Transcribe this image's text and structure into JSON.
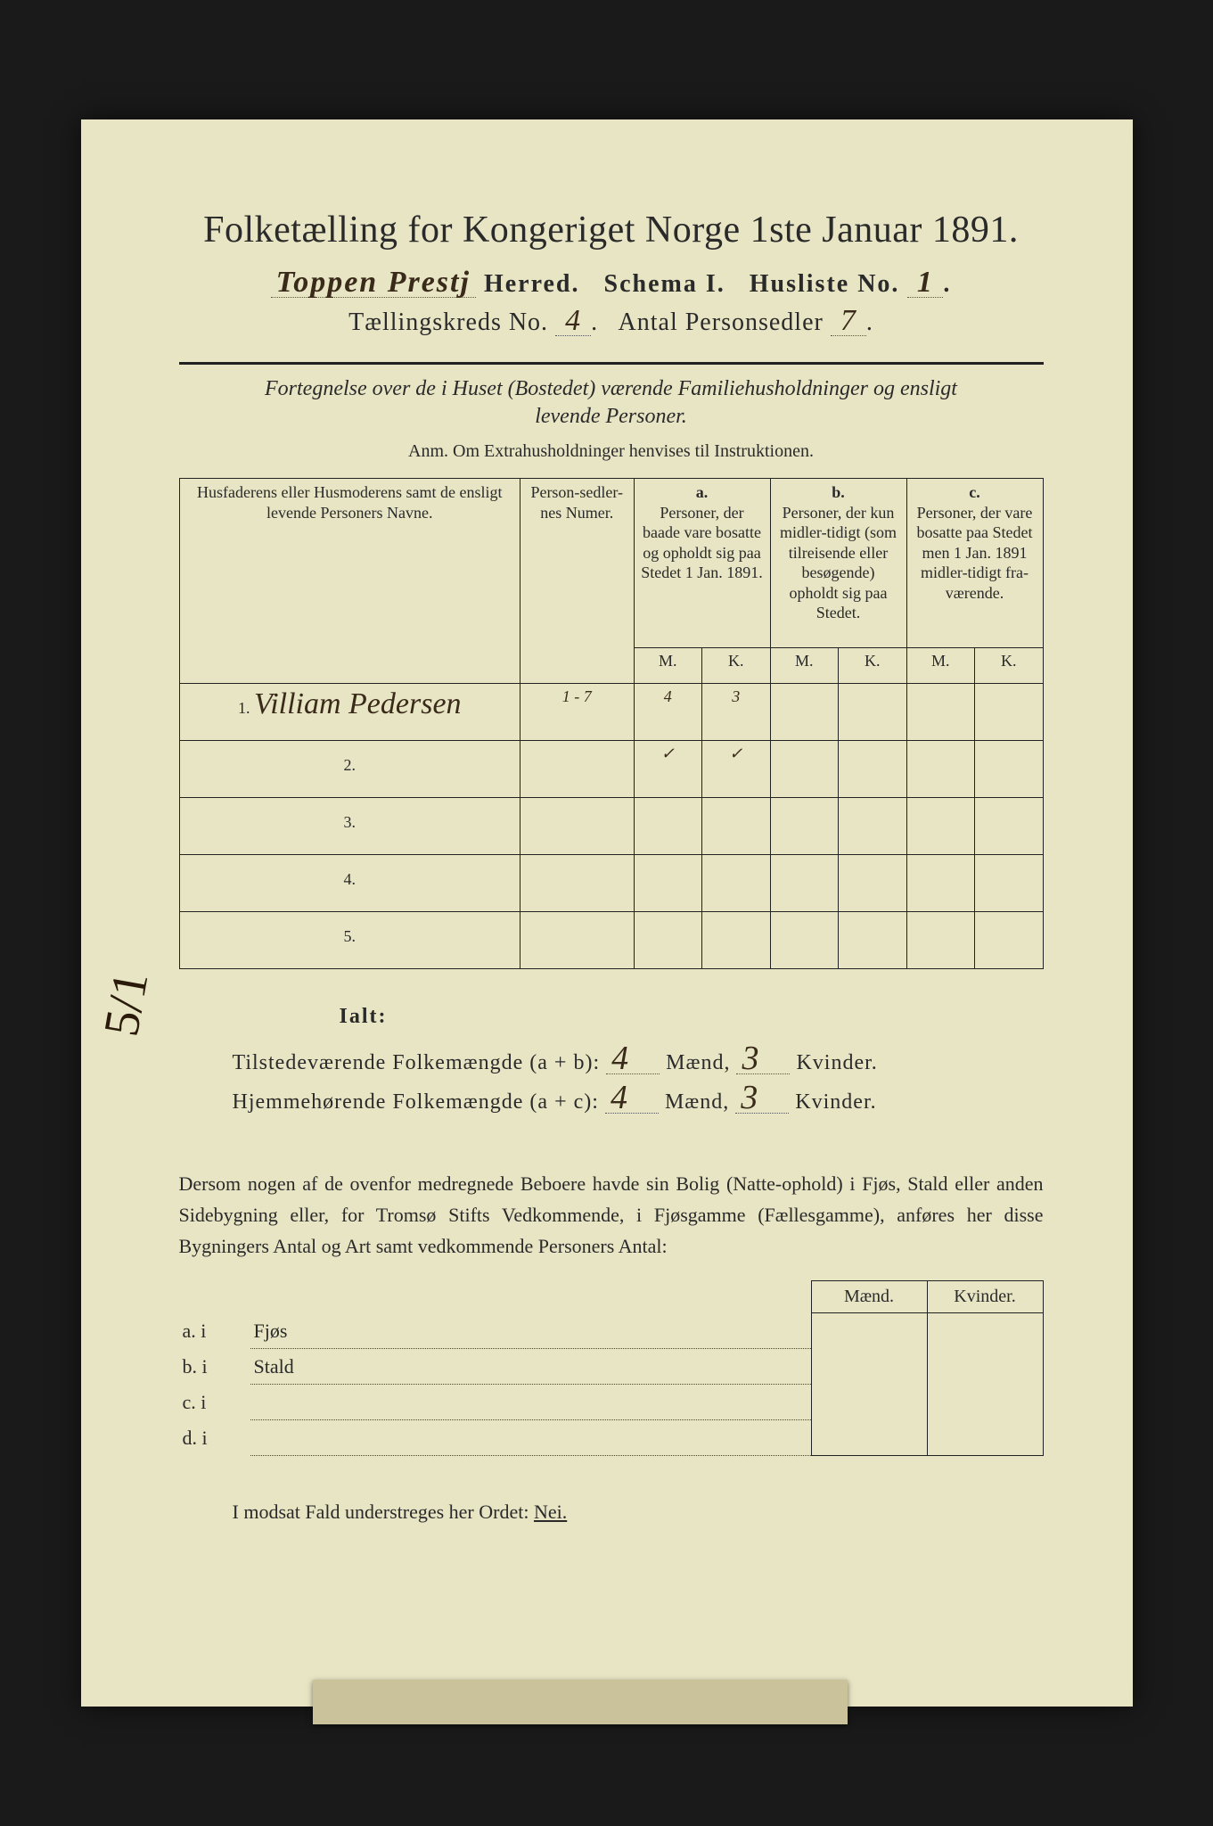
{
  "title": "Folketælling for Kongeriget Norge 1ste Januar 1891.",
  "header": {
    "herred_hw": "Toppen Prestj",
    "herred_label": "Herred.",
    "schema_label": "Schema I.",
    "husliste_label": "Husliste No.",
    "husliste_hw": "1",
    "kreds_label": "Tællingskreds No.",
    "kreds_hw": "4",
    "antal_label": "Antal Personsedler",
    "antal_hw": "7"
  },
  "subtitle1": "Fortegnelse over de i Huset (Bostedet) værende Familiehusholdninger og ensligt",
  "subtitle2": "levende Personer.",
  "anm": "Anm.  Om Extrahusholdninger henvises til Instruktionen.",
  "table": {
    "col1": "Husfaderens eller Husmoderens samt de ensligt levende Personers Navne.",
    "col2": "Person-sedler-nes Numer.",
    "a_label": "a.",
    "a_text": "Personer, der baade vare bosatte og opholdt sig paa Stedet 1 Jan. 1891.",
    "b_label": "b.",
    "b_text": "Personer, der kun midler-tidigt (som tilreisende eller besøgende) opholdt sig paa Stedet.",
    "c_label": "c.",
    "c_text": "Personer, der vare bosatte paa Stedet men 1 Jan. 1891 midler-tidigt fra-værende.",
    "M": "M.",
    "K": "K.",
    "rows": [
      {
        "n": "1.",
        "name": "Villiam Pedersen",
        "num": "1 - 7",
        "aM": "4",
        "aK": "3",
        "bM": "",
        "bK": "",
        "cM": "",
        "cK": ""
      },
      {
        "n": "2.",
        "name": "",
        "num": "",
        "aM": "✓",
        "aK": "✓",
        "bM": "",
        "bK": "",
        "cM": "",
        "cK": ""
      },
      {
        "n": "3.",
        "name": "",
        "num": "",
        "aM": "",
        "aK": "",
        "bM": "",
        "bK": "",
        "cM": "",
        "cK": ""
      },
      {
        "n": "4.",
        "name": "",
        "num": "",
        "aM": "",
        "aK": "",
        "bM": "",
        "bK": "",
        "cM": "",
        "cK": ""
      },
      {
        "n": "5.",
        "name": "",
        "num": "",
        "aM": "",
        "aK": "",
        "bM": "",
        "bK": "",
        "cM": "",
        "cK": ""
      }
    ]
  },
  "totals": {
    "ialt": "Ialt:",
    "line1a": "Tilstedeværende Folkemængde (a + b):",
    "line2a": "Hjemmehørende Folkemængde (a + c):",
    "maend": "Mænd,",
    "kvinder": "Kvinder.",
    "t_m": "4",
    "t_k": "3",
    "h_m": "4",
    "h_k": "3"
  },
  "margin": "5/1",
  "bodytext": "Dersom nogen af de ovenfor medregnede Beboere havde sin Bolig (Natte-ophold) i Fjøs, Stald eller anden Sidebygning eller, for Tromsø Stifts Vedkommende, i Fjøsgamme (Fællesgamme), anføres her disse Bygningers Antal og Art samt vedkommende Personers Antal:",
  "lower": {
    "maend": "Mænd.",
    "kvinder": "Kvinder.",
    "rows": [
      {
        "l": "a.  i",
        "t": "Fjøs"
      },
      {
        "l": "b.  i",
        "t": "Stald"
      },
      {
        "l": "c.  i",
        "t": ""
      },
      {
        "l": "d.  i",
        "t": ""
      }
    ]
  },
  "final": {
    "pre": "I modsat Fald understreges her Ordet: ",
    "nei": "Nei."
  }
}
